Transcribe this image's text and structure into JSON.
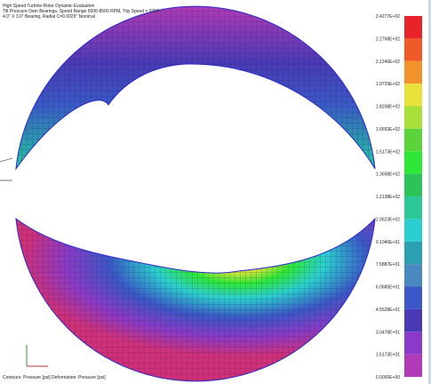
{
  "header": {
    "lines": [
      "High Speed Turbine Rotor Dynamic Evaluation",
      "Tilt Pressure Dam Bearings, Speed Range 5000-8500 RPM, Trip Speed = 9350",
      "4.0\" X 3.0\" Bearing, Radial C=0.0025\" Nominal"
    ]
  },
  "legend": {
    "labels": [
      "2.4277E+02",
      "2.2768E+02",
      "2.1240E+02",
      "1.9729E+02",
      "1.8208E+02",
      "1.6693E+02",
      "1.5173E+02",
      "1.3658E+02",
      "1.2138E+02",
      "1.0623E+02",
      "9.1040E+01",
      "7.5887E+01",
      "6.0685E+01",
      "4.5528E+01",
      "3.0478E+01",
      "1.5173E+01",
      "0.0000E+00"
    ],
    "colors": [
      "#e8232a",
      "#f05a28",
      "#f3922a",
      "#e8e23a",
      "#a8e03a",
      "#5ad43a",
      "#2ee838",
      "#2cc458",
      "#2cc89a",
      "#2ad0d0",
      "#2aa0b0",
      "#4a88c0",
      "#3a58c8",
      "#4a3ab8",
      "#8a3ac8",
      "#b03ab8",
      "#d0307a"
    ]
  },
  "footer": {
    "text": "Contours: Pressure [psi]   Deformation: Pressure [psi]"
  }
}
